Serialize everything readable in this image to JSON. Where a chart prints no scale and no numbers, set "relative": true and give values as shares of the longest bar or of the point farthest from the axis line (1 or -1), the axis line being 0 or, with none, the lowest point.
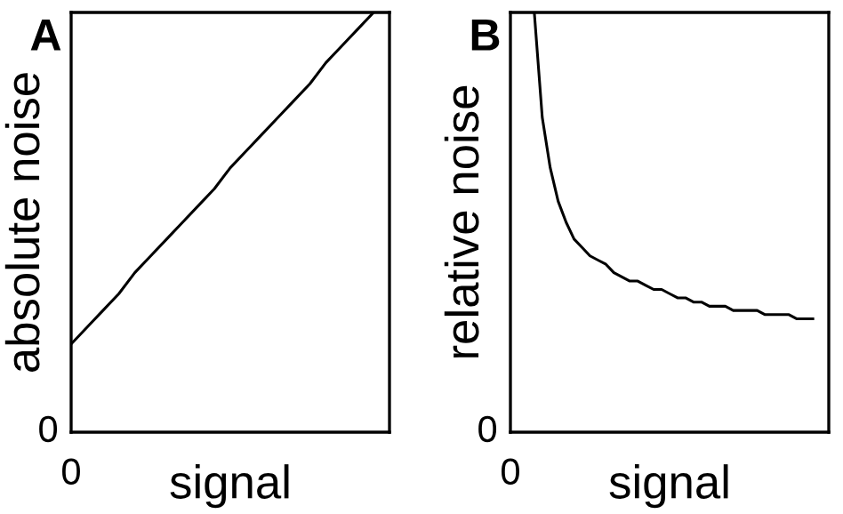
{
  "chart_data": [
    {
      "type": "line",
      "title": "A",
      "xlabel": "signal",
      "ylabel": "absolute noise",
      "relative": true,
      "annotations": [
        "0",
        "0"
      ],
      "categories": [
        null,
        null,
        null,
        null,
        null,
        null,
        null,
        null,
        null,
        null,
        null,
        null,
        null,
        null,
        null,
        null,
        null,
        null,
        null,
        null
      ],
      "series": [
        {
          "color": "#000000",
          "values": [
            0.21,
            0.25,
            0.29,
            0.33,
            0.38,
            0.42,
            0.46,
            0.5,
            0.54,
            0.58,
            0.63,
            0.67,
            0.71,
            0.75,
            0.79,
            0.83,
            0.88,
            0.92,
            0.96,
            1.0
          ]
        }
      ]
    },
    {
      "type": "line",
      "title": "B",
      "xlabel": "signal",
      "ylabel": "relative noise",
      "relative": true,
      "annotations": [
        "0",
        "0"
      ],
      "categories": [
        null,
        null,
        null,
        null,
        null,
        null,
        null,
        null,
        null,
        null,
        null,
        null,
        null,
        null,
        null,
        null,
        null,
        null,
        null,
        null,
        null,
        null,
        null,
        null,
        null,
        null,
        null,
        null,
        null,
        null,
        null,
        null,
        null,
        null,
        null,
        null,
        null,
        null,
        null
      ],
      "series": [
        {
          "color": "#000000",
          "values": [
            null,
            null,
            null,
            1.0,
            0.75,
            0.63,
            0.55,
            0.5,
            0.46,
            0.44,
            0.42,
            0.41,
            0.4,
            0.38,
            0.37,
            0.36,
            0.36,
            0.35,
            0.34,
            0.34,
            0.33,
            0.32,
            0.32,
            0.31,
            0.31,
            0.3,
            0.3,
            0.3,
            0.29,
            0.29,
            0.29,
            0.29,
            0.28,
            0.28,
            0.28,
            0.28,
            0.27,
            0.27,
            0.27
          ]
        }
      ]
    }
  ]
}
